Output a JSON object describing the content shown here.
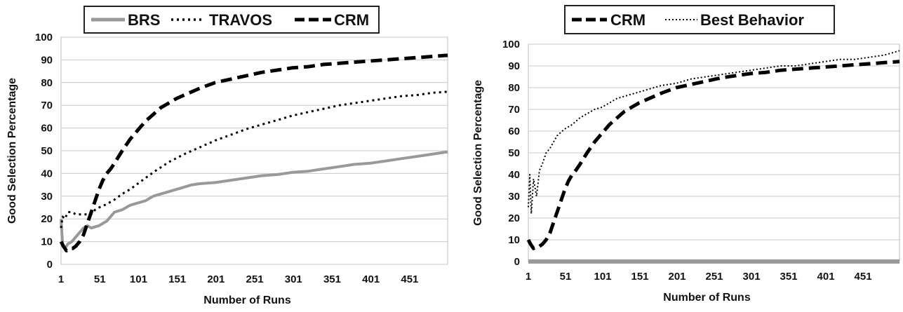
{
  "chart_data": [
    {
      "type": "line",
      "title": "",
      "xlabel": "Number of Runs",
      "ylabel": "Good Selection Percentage",
      "ylim": [
        0,
        100
      ],
      "xlim": [
        1,
        500
      ],
      "x_ticks": [
        "1",
        "51",
        "101",
        "151",
        "201",
        "251",
        "301",
        "351",
        "401",
        "451"
      ],
      "y_ticks": [
        "0",
        "10",
        "20",
        "30",
        "40",
        "50",
        "60",
        "70",
        "80",
        "90",
        "100"
      ],
      "grid": "horizontal",
      "legend_position": "top",
      "series": [
        {
          "name": "BRS",
          "style": "solid",
          "color": "#999999",
          "x": [
            1,
            3,
            6,
            10,
            15,
            20,
            25,
            30,
            35,
            40,
            50,
            60,
            70,
            80,
            90,
            100,
            110,
            120,
            130,
            140,
            150,
            160,
            170,
            180,
            200,
            220,
            240,
            260,
            280,
            300,
            320,
            340,
            360,
            380,
            400,
            420,
            440,
            460,
            480,
            500
          ],
          "values": [
            20,
            9,
            7,
            9,
            10,
            12,
            14,
            16,
            17,
            16,
            17,
            19,
            23,
            24,
            26,
            27,
            28,
            30,
            31,
            32,
            33,
            34,
            35,
            35.5,
            36,
            37,
            38,
            39,
            39.5,
            40.5,
            41,
            42,
            43,
            44,
            44.5,
            45.5,
            46.5,
            47.5,
            48.5,
            49.5
          ]
        },
        {
          "name": "TRAVOS",
          "style": "dotted",
          "color": "#000000",
          "x": [
            1,
            3,
            6,
            10,
            15,
            20,
            25,
            30,
            35,
            40,
            45,
            50,
            60,
            70,
            80,
            90,
            100,
            110,
            120,
            140,
            160,
            180,
            200,
            220,
            240,
            260,
            280,
            300,
            320,
            340,
            360,
            380,
            400,
            420,
            440,
            460,
            480,
            500
          ],
          "values": [
            16,
            21,
            20,
            23,
            23,
            22,
            22,
            22,
            22,
            22,
            24,
            25,
            26.5,
            28.5,
            31,
            33,
            35.5,
            38,
            40.5,
            45,
            48.5,
            51.5,
            54.5,
            57,
            59.5,
            61.5,
            63.5,
            65.5,
            67,
            68.5,
            70,
            71,
            72,
            73,
            74,
            74.5,
            75.5,
            76
          ]
        },
        {
          "name": "CRM",
          "style": "dashed",
          "color": "#000000",
          "x": [
            1,
            4,
            8,
            12,
            16,
            20,
            25,
            30,
            35,
            40,
            45,
            50,
            55,
            60,
            65,
            70,
            80,
            90,
            100,
            110,
            120,
            130,
            140,
            150,
            160,
            180,
            200,
            220,
            240,
            260,
            280,
            300,
            320,
            340,
            360,
            380,
            400,
            420,
            440,
            460,
            480,
            500
          ],
          "values": [
            10,
            8,
            6,
            7,
            7,
            8,
            10,
            13,
            18,
            23,
            28,
            33,
            37,
            40,
            42,
            44.5,
            50,
            55,
            59,
            63,
            66,
            69,
            71,
            73,
            74.5,
            77.5,
            80,
            81.5,
            83,
            84.5,
            85.5,
            86.5,
            87,
            88,
            88.5,
            89,
            89.5,
            90,
            90.5,
            91,
            91.5,
            92
          ]
        }
      ]
    },
    {
      "type": "line",
      "title": "",
      "xlabel": "Number of Runs",
      "ylabel": "Good Selection  Percentage",
      "ylim": [
        0,
        100
      ],
      "xlim": [
        1,
        500
      ],
      "x_ticks": [
        "1",
        "51",
        "101",
        "151",
        "201",
        "251",
        "301",
        "351",
        "401",
        "451"
      ],
      "y_ticks": [
        "0",
        "10",
        "20",
        "30",
        "40",
        "50",
        "60",
        "70",
        "80",
        "90",
        "100"
      ],
      "grid": "horizontal",
      "legend_position": "top",
      "series": [
        {
          "name": "CRM",
          "style": "dashed",
          "color": "#000000",
          "x": [
            1,
            4,
            8,
            12,
            16,
            20,
            25,
            30,
            35,
            40,
            45,
            50,
            55,
            60,
            65,
            70,
            80,
            90,
            100,
            110,
            120,
            130,
            140,
            150,
            160,
            180,
            200,
            220,
            240,
            260,
            280,
            300,
            320,
            340,
            360,
            380,
            400,
            420,
            440,
            460,
            480,
            500
          ],
          "values": [
            10,
            8,
            6,
            7,
            7,
            8,
            10,
            13,
            18,
            23,
            28,
            33,
            37,
            40,
            42,
            44.5,
            50,
            55,
            59,
            63,
            66,
            69,
            71,
            73,
            74.5,
            77.5,
            80,
            81.5,
            83,
            84.5,
            85.5,
            86.5,
            87,
            88,
            88.5,
            89,
            89.5,
            90,
            90.5,
            91,
            91.5,
            92
          ]
        },
        {
          "name": "Best Behavior",
          "style": "dotted",
          "color": "#000000",
          "x": [
            1,
            3,
            5,
            8,
            12,
            16,
            20,
            25,
            30,
            35,
            40,
            50,
            60,
            70,
            80,
            90,
            100,
            110,
            120,
            130,
            140,
            150,
            160,
            180,
            200,
            220,
            240,
            260,
            280,
            300,
            320,
            340,
            360,
            380,
            400,
            420,
            440,
            460,
            480,
            500
          ],
          "values": [
            25,
            40,
            22,
            38,
            30,
            42,
            45,
            50,
            52,
            55,
            58,
            61,
            63,
            66,
            68,
            70,
            71,
            73,
            75,
            76,
            77,
            78,
            79,
            81,
            82,
            84,
            85,
            86,
            87,
            88,
            89,
            90,
            90,
            91,
            92,
            93,
            93,
            94,
            95,
            97
          ]
        },
        {
          "name": "",
          "style": "solid",
          "color": "#999999",
          "x": [
            1,
            500
          ],
          "values": [
            0,
            0
          ]
        }
      ]
    }
  ]
}
